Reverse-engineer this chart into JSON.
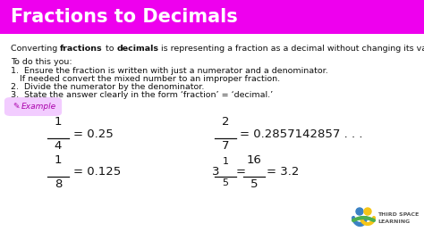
{
  "title": "Fractions to Decimals",
  "title_bg_color": "#EE00EE",
  "title_text_color": "#FFFFFF",
  "body_bg_color": "#FFFFFF",
  "body_text_color": "#111111",
  "example_label": "Example",
  "example_bg": "#F2CCFF",
  "example_text_color": "#AA00AA",
  "math_color": "#111111",
  "logo_text1": "THIRD SPACE",
  "logo_text2": "LEARNING",
  "font_size_title": 15,
  "font_size_body": 6.8,
  "font_size_math": 9.5,
  "font_size_math_small": 8.0
}
